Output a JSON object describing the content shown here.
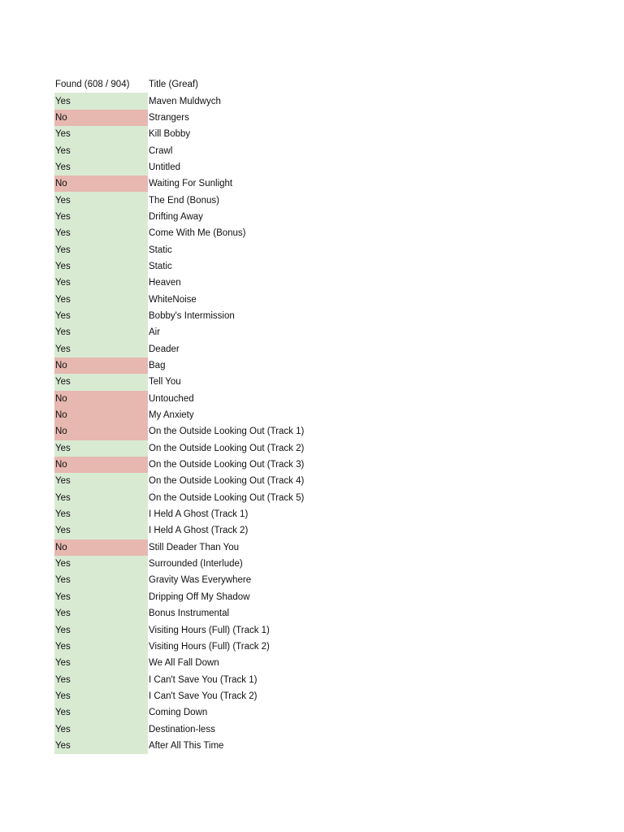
{
  "table": {
    "headers": {
      "found": "Found (608 / 904)",
      "title": "Title (Greaf)"
    },
    "colors": {
      "yes": "#d9ead3",
      "no": "#e6b8af"
    },
    "rows": [
      {
        "found": "Yes",
        "title": "Maven Muldwych"
      },
      {
        "found": "No",
        "title": "Strangers"
      },
      {
        "found": "Yes",
        "title": "Kill Bobby"
      },
      {
        "found": "Yes",
        "title": "Crawl"
      },
      {
        "found": "Yes",
        "title": "Untitled"
      },
      {
        "found": "No",
        "title": "Waiting For Sunlight"
      },
      {
        "found": "Yes",
        "title": "The End (Bonus)"
      },
      {
        "found": "Yes",
        "title": "Drifting Away"
      },
      {
        "found": "Yes",
        "title": "Come With Me (Bonus)"
      },
      {
        "found": "Yes",
        "title": "Static"
      },
      {
        "found": "Yes",
        "title": "Static"
      },
      {
        "found": "Yes",
        "title": "Heaven"
      },
      {
        "found": "Yes",
        "title": "WhiteNoise"
      },
      {
        "found": "Yes",
        "title": "Bobby's Intermission"
      },
      {
        "found": "Yes",
        "title": "Air"
      },
      {
        "found": "Yes",
        "title": "Deader"
      },
      {
        "found": "No",
        "title": "Bag"
      },
      {
        "found": "Yes",
        "title": "Tell You"
      },
      {
        "found": "No",
        "title": "Untouched"
      },
      {
        "found": "No",
        "title": "My Anxiety"
      },
      {
        "found": "No",
        "title": "On the Outside Looking Out (Track 1)"
      },
      {
        "found": "Yes",
        "title": "On the Outside Looking Out (Track 2)"
      },
      {
        "found": "No",
        "title": "On the Outside Looking Out (Track 3)"
      },
      {
        "found": "Yes",
        "title": "On the Outside Looking Out (Track 4)"
      },
      {
        "found": "Yes",
        "title": "On the Outside Looking Out (Track 5)"
      },
      {
        "found": "Yes",
        "title": "I Held A Ghost (Track 1)"
      },
      {
        "found": "Yes",
        "title": "I Held A Ghost (Track 2)"
      },
      {
        "found": "No",
        "title": "Still Deader Than You"
      },
      {
        "found": "Yes",
        "title": "Surrounded (Interlude)"
      },
      {
        "found": "Yes",
        "title": "Gravity Was Everywhere"
      },
      {
        "found": "Yes",
        "title": "Dripping Off My Shadow"
      },
      {
        "found": "Yes",
        "title": "Bonus Instrumental"
      },
      {
        "found": "Yes",
        "title": "Visiting Hours (Full) (Track 1)"
      },
      {
        "found": "Yes",
        "title": "Visiting Hours (Full) (Track 2)"
      },
      {
        "found": "Yes",
        "title": "We All Fall Down"
      },
      {
        "found": "Yes",
        "title": "I Can't Save You (Track 1)"
      },
      {
        "found": "Yes",
        "title": "I Can't Save You (Track 2)"
      },
      {
        "found": "Yes",
        "title": "Coming Down"
      },
      {
        "found": "Yes",
        "title": "Destination-less"
      },
      {
        "found": "Yes",
        "title": "After All This Time"
      }
    ]
  }
}
